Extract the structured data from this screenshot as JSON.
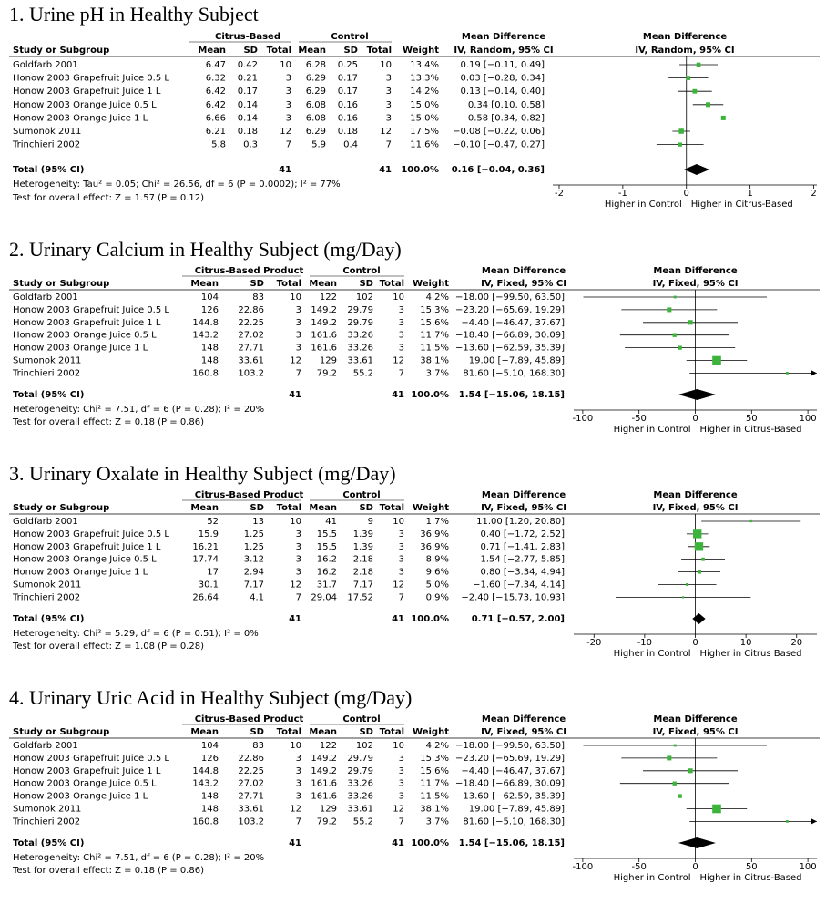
{
  "chart_data": [
    {
      "type": "forest",
      "title": "1.   Urine pH in Healthy Subject",
      "group_headers": [
        "Citrus-Based",
        "Control"
      ],
      "ci_header": "Mean Difference",
      "ci_method": "IV, Random, 95% CI",
      "plot_header": "Mean Difference",
      "plot_method": "IV, Random, 95% CI",
      "columns": [
        "Study or Subgroup",
        "Mean",
        "SD",
        "Total",
        "Mean",
        "SD",
        "Total",
        "Weight"
      ],
      "rows": [
        [
          "Goldfarb 2001",
          "6.47",
          "0.42",
          "10",
          "6.28",
          "0.25",
          "10",
          "13.4%",
          "0.19 [−0.11, 0.49]"
        ],
        [
          "Honow 2003 Grapefruit Juice 0.5 L",
          "6.32",
          "0.21",
          "3",
          "6.29",
          "0.17",
          "3",
          "13.3%",
          "0.03 [−0.28, 0.34]"
        ],
        [
          "Honow 2003 Grapefruit Juice 1 L",
          "6.42",
          "0.17",
          "3",
          "6.29",
          "0.17",
          "3",
          "14.2%",
          "0.13 [−0.14, 0.40]"
        ],
        [
          "Honow 2003 Orange Juice 0.5 L",
          "6.42",
          "0.14",
          "3",
          "6.08",
          "0.16",
          "3",
          "15.0%",
          "0.34 [0.10, 0.58]"
        ],
        [
          "Honow 2003 Orange Juice 1 L",
          "6.66",
          "0.14",
          "3",
          "6.08",
          "0.16",
          "3",
          "15.0%",
          "0.58 [0.34, 0.82]"
        ],
        [
          "Sumonok 2011",
          "6.21",
          "0.18",
          "12",
          "6.29",
          "0.18",
          "12",
          "17.5%",
          "−0.08 [−0.22, 0.06]"
        ],
        [
          "Trinchieri 2002",
          "5.8",
          "0.3",
          "7",
          "5.9",
          "0.4",
          "7",
          "11.6%",
          "−0.10 [−0.47, 0.27]"
        ]
      ],
      "md": [
        0.19,
        0.03,
        0.13,
        0.34,
        0.58,
        -0.08,
        -0.1
      ],
      "lo": [
        -0.11,
        -0.28,
        -0.14,
        0.1,
        0.34,
        -0.22,
        -0.47
      ],
      "hi": [
        0.49,
        0.34,
        0.4,
        0.58,
        0.82,
        0.06,
        0.27
      ],
      "weights": [
        13.4,
        13.3,
        14.2,
        15.0,
        15.0,
        17.5,
        11.6
      ],
      "total": {
        "label": "Total (95% CI)",
        "n1": "41",
        "n2": "41",
        "weight": "100.0%",
        "ci": "0.16 [−0.04, 0.36]",
        "md": 0.16,
        "lo": -0.04,
        "hi": 0.36
      },
      "heterogeneity": "Heterogeneity: Tau² = 0.05; Chi² = 26.56, df = 6 (P = 0.0002); I² = 77%",
      "overall": "Test for overall effect: Z = 1.57 (P = 0.12)",
      "xlim": [
        -2.1,
        2.05
      ],
      "xticks": [
        -2,
        -1,
        0,
        1,
        2
      ],
      "xlabels": [
        "Higher in Control",
        "Higher in Citrus-Based"
      ],
      "square_color": "#3cb43c"
    },
    {
      "type": "forest",
      "title": "2.   Urinary Calcium in Healthy Subject (mg/Day)",
      "group_headers": [
        "Citrus-Based Product",
        "Control"
      ],
      "ci_header": "Mean Difference",
      "ci_method": "IV, Fixed, 95% CI",
      "plot_header": "Mean Difference",
      "plot_method": "IV, Fixed, 95% CI",
      "columns": [
        "Study or Subgroup",
        "Mean",
        "SD",
        "Total",
        "Mean",
        "SD",
        "Total",
        "Weight"
      ],
      "rows": [
        [
          "Goldfarb 2001",
          "104",
          "83",
          "10",
          "122",
          "102",
          "10",
          "4.2%",
          "−18.00 [−99.50, 63.50]"
        ],
        [
          "Honow 2003 Grapefruit Juice 0.5 L",
          "126",
          "22.86",
          "3",
          "149.2",
          "29.79",
          "3",
          "15.3%",
          "−23.20 [−65.69, 19.29]"
        ],
        [
          "Honow 2003 Grapefruit Juice 1 L",
          "144.8",
          "22.25",
          "3",
          "149.2",
          "29.79",
          "3",
          "15.6%",
          "−4.40 [−46.47, 37.67]"
        ],
        [
          "Honow 2003 Orange Juice 0.5 L",
          "143.2",
          "27.02",
          "3",
          "161.6",
          "33.26",
          "3",
          "11.7%",
          "−18.40 [−66.89, 30.09]"
        ],
        [
          "Honow 2003 Orange Juice 1 L",
          "148",
          "27.71",
          "3",
          "161.6",
          "33.26",
          "3",
          "11.5%",
          "−13.60 [−62.59, 35.39]"
        ],
        [
          "Sumonok 2011",
          "148",
          "33.61",
          "12",
          "129",
          "33.61",
          "12",
          "38.1%",
          "19.00 [−7.89, 45.89]"
        ],
        [
          "Trinchieri 2002",
          "160.8",
          "103.2",
          "7",
          "79.2",
          "55.2",
          "7",
          "3.7%",
          "81.60 [−5.10, 168.30]"
        ]
      ],
      "md": [
        -18.0,
        -23.2,
        -4.4,
        -18.4,
        -13.6,
        19.0,
        81.6
      ],
      "lo": [
        -99.5,
        -65.69,
        -46.47,
        -66.89,
        -62.59,
        -7.89,
        -5.1
      ],
      "hi": [
        63.5,
        19.29,
        37.67,
        30.09,
        35.39,
        45.89,
        168.3
      ],
      "weights": [
        4.2,
        15.3,
        15.6,
        11.7,
        11.5,
        38.1,
        3.7
      ],
      "total": {
        "label": "Total (95% CI)",
        "n1": "41",
        "n2": "41",
        "weight": "100.0%",
        "ci": "1.54 [−15.06, 18.15]",
        "md": 1.54,
        "lo": -15.06,
        "hi": 18.15
      },
      "heterogeneity": "Heterogeneity: Chi² = 7.51, df = 6 (P = 0.28); I² = 20%",
      "overall": "Test for overall effect: Z = 0.18 (P = 0.86)",
      "xlim": [
        -108,
        108
      ],
      "xticks": [
        -100,
        -50,
        0,
        50,
        100
      ],
      "xlabels": [
        "Higher in Control",
        "Higher in Citrus-Based"
      ],
      "square_color": "#3cb43c"
    },
    {
      "type": "forest",
      "title": "3.   Urinary Oxalate in Healthy Subject (mg/Day)",
      "group_headers": [
        "Citrus-Based Product",
        "Control"
      ],
      "ci_header": "Mean Difference",
      "ci_method": "IV, Fixed, 95% CI",
      "plot_header": "Mean Difference",
      "plot_method": "IV, Fixed, 95% CI",
      "columns": [
        "Study or Subgroup",
        "Mean",
        "SD",
        "Total",
        "Mean",
        "SD",
        "Total",
        "Weight"
      ],
      "rows": [
        [
          "Goldfarb 2001",
          "52",
          "13",
          "10",
          "41",
          "9",
          "10",
          "1.7%",
          "11.00 [1.20, 20.80]"
        ],
        [
          "Honow 2003 Grapefruit Juice 0.5 L",
          "15.9",
          "1.25",
          "3",
          "15.5",
          "1.39",
          "3",
          "36.9%",
          "0.40 [−1.72, 2.52]"
        ],
        [
          "Honow 2003 Grapefruit Juice 1 L",
          "16.21",
          "1.25",
          "3",
          "15.5",
          "1.39",
          "3",
          "36.9%",
          "0.71 [−1.41, 2.83]"
        ],
        [
          "Honow 2003 Orange Juice 0.5 L",
          "17.74",
          "3.12",
          "3",
          "16.2",
          "2.18",
          "3",
          "8.9%",
          "1.54 [−2.77, 5.85]"
        ],
        [
          "Honow 2003 Orange Juice 1 L",
          "17",
          "2.94",
          "3",
          "16.2",
          "2.18",
          "3",
          "9.6%",
          "0.80 [−3.34, 4.94]"
        ],
        [
          "Sumonok 2011",
          "30.1",
          "7.17",
          "12",
          "31.7",
          "7.17",
          "12",
          "5.0%",
          "−1.60 [−7.34, 4.14]"
        ],
        [
          "Trinchieri 2002",
          "26.64",
          "4.1",
          "7",
          "29.04",
          "17.52",
          "7",
          "0.9%",
          "−2.40 [−15.73, 10.93]"
        ]
      ],
      "md": [
        11.0,
        0.4,
        0.71,
        1.54,
        0.8,
        -1.6,
        -2.4
      ],
      "lo": [
        1.2,
        -1.72,
        -1.41,
        -2.77,
        -3.34,
        -7.34,
        -15.73
      ],
      "hi": [
        20.8,
        2.52,
        2.83,
        5.85,
        4.94,
        4.14,
        10.93
      ],
      "weights": [
        1.7,
        36.9,
        36.9,
        8.9,
        9.6,
        5.0,
        0.9
      ],
      "total": {
        "label": "Total (95% CI)",
        "n1": "41",
        "n2": "41",
        "weight": "100.0%",
        "ci": "0.71 [−0.57, 2.00]",
        "md": 0.71,
        "lo": -0.57,
        "hi": 2.0
      },
      "heterogeneity": "Heterogeneity: Chi² = 5.29, df = 6 (P = 0.51); I² = 0%",
      "overall": "Test for overall effect: Z = 1.08 (P = 0.28)",
      "xlim": [
        -24,
        24
      ],
      "xticks": [
        -20,
        -10,
        0,
        10,
        20
      ],
      "xlabels": [
        "Higher in Control",
        "Higher in Citrus Based"
      ],
      "square_color": "#3cb43c"
    },
    {
      "type": "forest",
      "title": "4.   Urinary Uric Acid in Healthy Subject (mg/Day)",
      "group_headers": [
        "Citrus-Based Product",
        "Control"
      ],
      "ci_header": "Mean Difference",
      "ci_method": "IV, Fixed, 95% CI",
      "plot_header": "Mean Difference",
      "plot_method": "IV, Fixed, 95% CI",
      "columns": [
        "Study or Subgroup",
        "Mean",
        "SD",
        "Total",
        "Mean",
        "SD",
        "Total",
        "Weight"
      ],
      "rows": [
        [
          "Goldfarb 2001",
          "104",
          "83",
          "10",
          "122",
          "102",
          "10",
          "4.2%",
          "−18.00 [−99.50, 63.50]"
        ],
        [
          "Honow 2003 Grapefruit Juice 0.5 L",
          "126",
          "22.86",
          "3",
          "149.2",
          "29.79",
          "3",
          "15.3%",
          "−23.20 [−65.69, 19.29]"
        ],
        [
          "Honow 2003 Grapefruit Juice 1 L",
          "144.8",
          "22.25",
          "3",
          "149.2",
          "29.79",
          "3",
          "15.6%",
          "−4.40 [−46.47, 37.67]"
        ],
        [
          "Honow 2003 Orange Juice 0.5 L",
          "143.2",
          "27.02",
          "3",
          "161.6",
          "33.26",
          "3",
          "11.7%",
          "−18.40 [−66.89, 30.09]"
        ],
        [
          "Honow 2003 Orange Juice 1 L",
          "148",
          "27.71",
          "3",
          "161.6",
          "33.26",
          "3",
          "11.5%",
          "−13.60 [−62.59, 35.39]"
        ],
        [
          "Sumonok 2011",
          "148",
          "33.61",
          "12",
          "129",
          "33.61",
          "12",
          "38.1%",
          "19.00 [−7.89, 45.89]"
        ],
        [
          "Trinchieri 2002",
          "160.8",
          "103.2",
          "7",
          "79.2",
          "55.2",
          "7",
          "3.7%",
          "81.60 [−5.10, 168.30]"
        ]
      ],
      "md": [
        -18.0,
        -23.2,
        -4.4,
        -18.4,
        -13.6,
        19.0,
        81.6
      ],
      "lo": [
        -99.5,
        -65.69,
        -46.47,
        -66.89,
        -62.59,
        -7.89,
        -5.1
      ],
      "hi": [
        63.5,
        19.29,
        37.67,
        30.09,
        35.39,
        45.89,
        168.3
      ],
      "weights": [
        4.2,
        15.3,
        15.6,
        11.7,
        11.5,
        38.1,
        3.7
      ],
      "total": {
        "label": "Total (95% CI)",
        "n1": "41",
        "n2": "41",
        "weight": "100.0%",
        "ci": "1.54 [−15.06, 18.15]",
        "md": 1.54,
        "lo": -15.06,
        "hi": 18.15
      },
      "heterogeneity": "Heterogeneity: Chi² = 7.51, df = 6 (P = 0.28); I² = 20%",
      "overall": "Test for overall effect: Z = 0.18 (P = 0.86)",
      "xlim": [
        -108,
        108
      ],
      "xticks": [
        -100,
        -50,
        0,
        50,
        100
      ],
      "xlabels": [
        "Higher in Control",
        "Higher in Citrus-Based"
      ],
      "square_color": "#3cb43c"
    }
  ]
}
